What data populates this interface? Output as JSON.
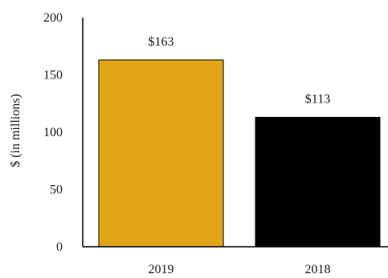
{
  "chart_data": {
    "type": "bar",
    "categories": [
      "2019",
      "2018"
    ],
    "values": [
      163,
      113
    ],
    "data_labels": [
      "$163",
      "$113"
    ],
    "ylabel": "$ (in millions)",
    "ylim": [
      0,
      200
    ],
    "yticks": [
      "0",
      "50",
      "100",
      "150",
      "200"
    ],
    "grid": false,
    "colors": [
      "#E2A517",
      "#000000"
    ]
  }
}
